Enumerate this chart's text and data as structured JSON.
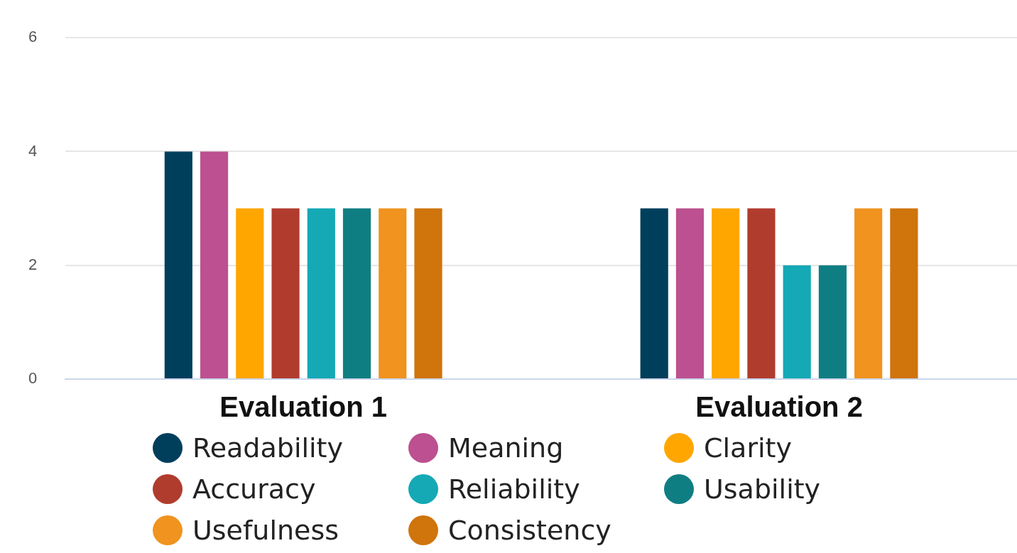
{
  "chart_data": {
    "type": "bar",
    "categories": [
      "Evaluation 1",
      "Evaluation 2"
    ],
    "series": [
      {
        "name": "Readability",
        "color": "#003f5c",
        "values": [
          4,
          3
        ]
      },
      {
        "name": "Meaning",
        "color": "#bc5090",
        "values": [
          4,
          3
        ]
      },
      {
        "name": "Clarity",
        "color": "#ffa600",
        "values": [
          3,
          3
        ]
      },
      {
        "name": "Accuracy",
        "color": "#b03c2e",
        "values": [
          3,
          3
        ]
      },
      {
        "name": "Reliability",
        "color": "#14a9b5",
        "values": [
          3,
          2
        ]
      },
      {
        "name": "Usability",
        "color": "#0f7e82",
        "values": [
          3,
          2
        ]
      },
      {
        "name": "Usefulness",
        "color": "#f0931f",
        "values": [
          3,
          3
        ]
      },
      {
        "name": "Consistency",
        "color": "#d0740c",
        "values": [
          3,
          3
        ]
      }
    ],
    "ylim": [
      0,
      6
    ],
    "yticks": [
      0,
      2,
      4,
      6
    ],
    "grid": "y",
    "legend": "bottom"
  }
}
